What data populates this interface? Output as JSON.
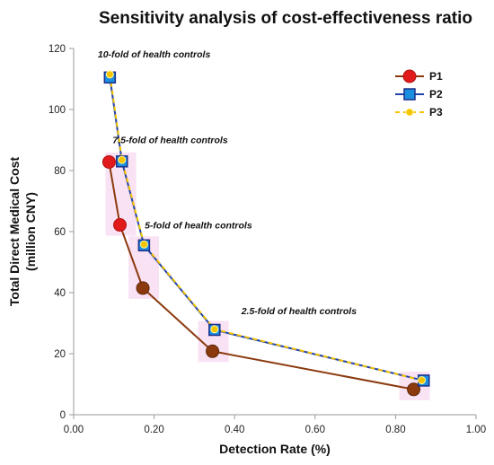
{
  "chart_data": {
    "type": "line",
    "title": "Sensitivity analysis of cost-effectiveness ratio",
    "xlabel": "Detection Rate (%)",
    "ylabel_line1": "Total Direct Medical Cost",
    "ylabel_line2": "(million CNY)",
    "xlim": [
      0,
      1
    ],
    "ylim": [
      0,
      120
    ],
    "xticks": [
      "0.00",
      "0.20",
      "0.40",
      "0.60",
      "0.80",
      "1.00"
    ],
    "xtick_values": [
      0,
      0.2,
      0.4,
      0.6,
      0.8,
      1.0
    ],
    "yticks": [
      "0",
      "20",
      "40",
      "60",
      "80",
      "100",
      "120"
    ],
    "ytick_values": [
      0,
      20,
      40,
      60,
      80,
      100,
      120
    ],
    "grid": false,
    "legend_position": "top-right",
    "series": [
      {
        "name": "P1",
        "color": "#e11b1b",
        "line_color": "#8b3a0e",
        "marker": "circle",
        "points": [
          {
            "x": 0.088,
            "y": 82.8
          },
          {
            "x": 0.115,
            "y": 62.2
          },
          {
            "x": 0.172,
            "y": 41.5
          },
          {
            "x": 0.345,
            "y": 20.8
          },
          {
            "x": 0.845,
            "y": 8.3
          }
        ]
      },
      {
        "name": "P2",
        "color": "#1a8fe0",
        "line_color": "#2244aa",
        "marker": "square",
        "points": [
          {
            "x": 0.09,
            "y": 110.5
          },
          {
            "x": 0.12,
            "y": 83.0
          },
          {
            "x": 0.175,
            "y": 55.5
          },
          {
            "x": 0.35,
            "y": 27.8
          },
          {
            "x": 0.87,
            "y": 11.2
          }
        ]
      },
      {
        "name": "P3",
        "color": "#f5c400",
        "line_color": "#f5c400",
        "marker": "diamond",
        "points": [
          {
            "x": 0.09,
            "y": 111.5
          },
          {
            "x": 0.12,
            "y": 83.5
          },
          {
            "x": 0.175,
            "y": 55.8
          },
          {
            "x": 0.35,
            "y": 28.0
          },
          {
            "x": 0.865,
            "y": 11.3
          }
        ]
      }
    ],
    "annotations": [
      {
        "text": "10-fold of health controls",
        "x": 0.2,
        "y": 117
      },
      {
        "text": "7.5-fold of health controls",
        "x": 0.24,
        "y": 89
      },
      {
        "text": "5-fold of health controls",
        "x": 0.31,
        "y": 61
      },
      {
        "text": "2.5-fold of health controls",
        "x": 0.56,
        "y": 33
      }
    ]
  }
}
